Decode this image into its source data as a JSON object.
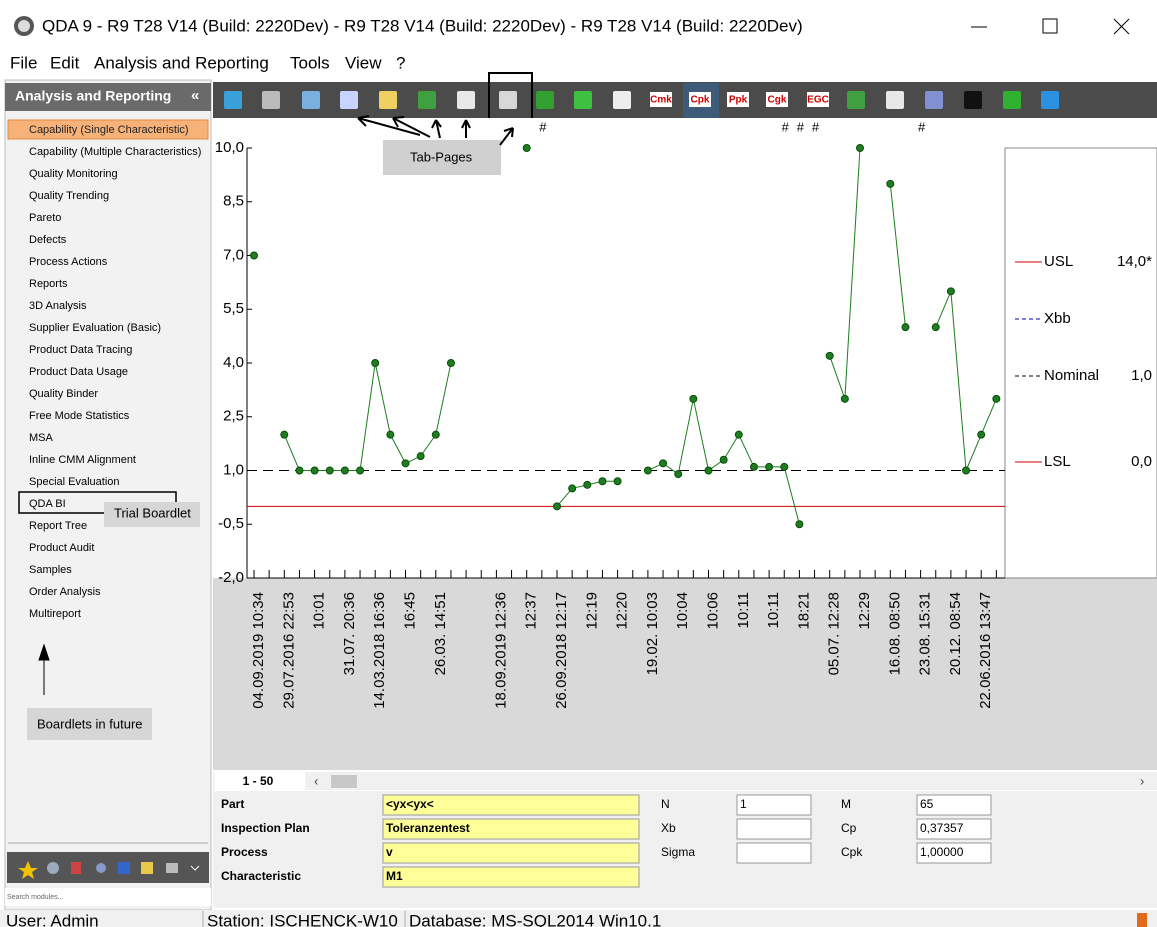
{
  "window": {
    "title": "QDA 9 - R9 T28 V14 (Build: 2220Dev) - R9 T28 V14 (Build: 2220Dev) - R9 T28 V14 (Build: 2220Dev)"
  },
  "menu": [
    "File",
    "Edit",
    "Analysis and Reporting",
    "Tools",
    "View",
    "?"
  ],
  "sidebar": {
    "title": "Analysis and Reporting",
    "collapse": "«",
    "items": [
      "Capability (Single Characteristic)",
      "Capability (Multiple Characteristics)",
      "Quality Monitoring",
      "Quality Trending",
      "Pareto",
      "Defects",
      "Process Actions",
      "Reports",
      "3D Analysis",
      "Supplier Evaluation (Basic)",
      "Product Data Tracing",
      "Product Data Usage",
      "Quality Binder",
      "Free Mode Statistics",
      "MSA",
      "Inline CMM Alignment",
      "Special Evaluation",
      "QDA BI",
      "Report Tree",
      "Product Audit",
      "Samples",
      "Order Analysis",
      "Multireport"
    ],
    "search_placeholder": "Search modules..."
  },
  "toolbar": {
    "labels": [
      "Cmk",
      "Cpk",
      "Ppk",
      "Cgk",
      "EGC"
    ]
  },
  "annotations": {
    "tab_pages": "Tab-Pages",
    "trial_boardlet": "Trial Boardlet",
    "boardlets_future": "Boardlets in future"
  },
  "chart": {
    "type": "line",
    "categories": [
      "04.09.2019 10:34",
      null,
      "29.07.2016 22:53",
      null,
      "10:01",
      null,
      "31.07. 20:36",
      null,
      "14.03.2018 16:36",
      null,
      "16:45",
      null,
      "26.03. 14:51",
      null,
      null,
      null,
      "18.09.2019 12:36",
      null,
      "12:37",
      null,
      "26.09.2018 12:17",
      null,
      "12:19",
      null,
      "12:20",
      null,
      "19.02. 10:03",
      null,
      "10:04",
      null,
      "10:06",
      null,
      "10:11",
      null,
      "10:11",
      null,
      "18:21",
      null,
      "05.07. 12:28",
      null,
      "12:29",
      null,
      "16.08. 08:50",
      null,
      "23.08. 15:31",
      null,
      "20.12. 08:54",
      null,
      "22.06.2016 13:47",
      null
    ],
    "series": [
      {
        "color": "#1e7d1e",
        "values": [
          7.0,
          null,
          2.0,
          1.0,
          1.0,
          1.0,
          1.0,
          1.0,
          4.0,
          2.0,
          1.2,
          1.4,
          2.0,
          4.0,
          null,
          null,
          null,
          null,
          10.0,
          null,
          0.0,
          0.5,
          0.6,
          0.7,
          0.7,
          null,
          1.0,
          1.2,
          0.9,
          3.0,
          1.0,
          1.3,
          2.0,
          1.1,
          1.1,
          1.1,
          -0.5,
          null,
          4.2,
          3.0,
          10.0,
          null,
          9.0,
          5.0,
          null,
          5.0,
          6.0,
          1.0,
          2.0,
          3.0
        ]
      }
    ],
    "ylim": [
      -2,
      10
    ],
    "yticks": [
      {
        "value": 10,
        "label": "10,0"
      },
      {
        "value": 8.5,
        "label": "8,5"
      },
      {
        "value": 7,
        "label": "7,0"
      },
      {
        "value": 5.5,
        "label": "5,5"
      },
      {
        "value": 4,
        "label": "4,0"
      },
      {
        "value": 2.5,
        "label": "2,5"
      },
      {
        "value": 1,
        "label": "1,0"
      },
      {
        "value": -0.5,
        "label": "-0,5"
      },
      {
        "value": -2,
        "label": "-2,0"
      }
    ],
    "reference_lines": [
      {
        "name": "USL",
        "value": 14.0,
        "value_label": "14,0*",
        "color": "#d40000",
        "dashed": false
      },
      {
        "name": "Xbb",
        "color": "#0000c8",
        "dashed": true
      },
      {
        "name": "Nominal",
        "value": 1.0,
        "value_label": "1,0",
        "color": "#000000",
        "dashed": true
      },
      {
        "name": "LSL",
        "value": 0.0,
        "value_label": "0,0",
        "color": "#d40000",
        "dashed": false
      }
    ],
    "flags": {
      "label": "#",
      "indices": [
        19,
        35,
        36,
        37,
        44
      ]
    }
  },
  "page_tab": "1 - 50",
  "form": {
    "fields": [
      {
        "label": "Part",
        "value": "<yx<yx<"
      },
      {
        "label": "Inspection Plan",
        "value": "Toleranzentest"
      },
      {
        "label": "Process",
        "value": "v"
      },
      {
        "label": "Characteristic",
        "value": "M1"
      }
    ],
    "stats": [
      {
        "label": "N",
        "value": "1"
      },
      {
        "label": "Xb"
      },
      {
        "label": "Sigma"
      },
      {
        "label": "M",
        "value": "65"
      },
      {
        "label": "Cp",
        "value": "0,37357"
      },
      {
        "label": "Cpk",
        "value": "1,00000"
      }
    ]
  },
  "status": [
    "User: Admin",
    "Station: ISCHENCK-W10",
    "Database: MS-SQL2014 Win10.1"
  ]
}
